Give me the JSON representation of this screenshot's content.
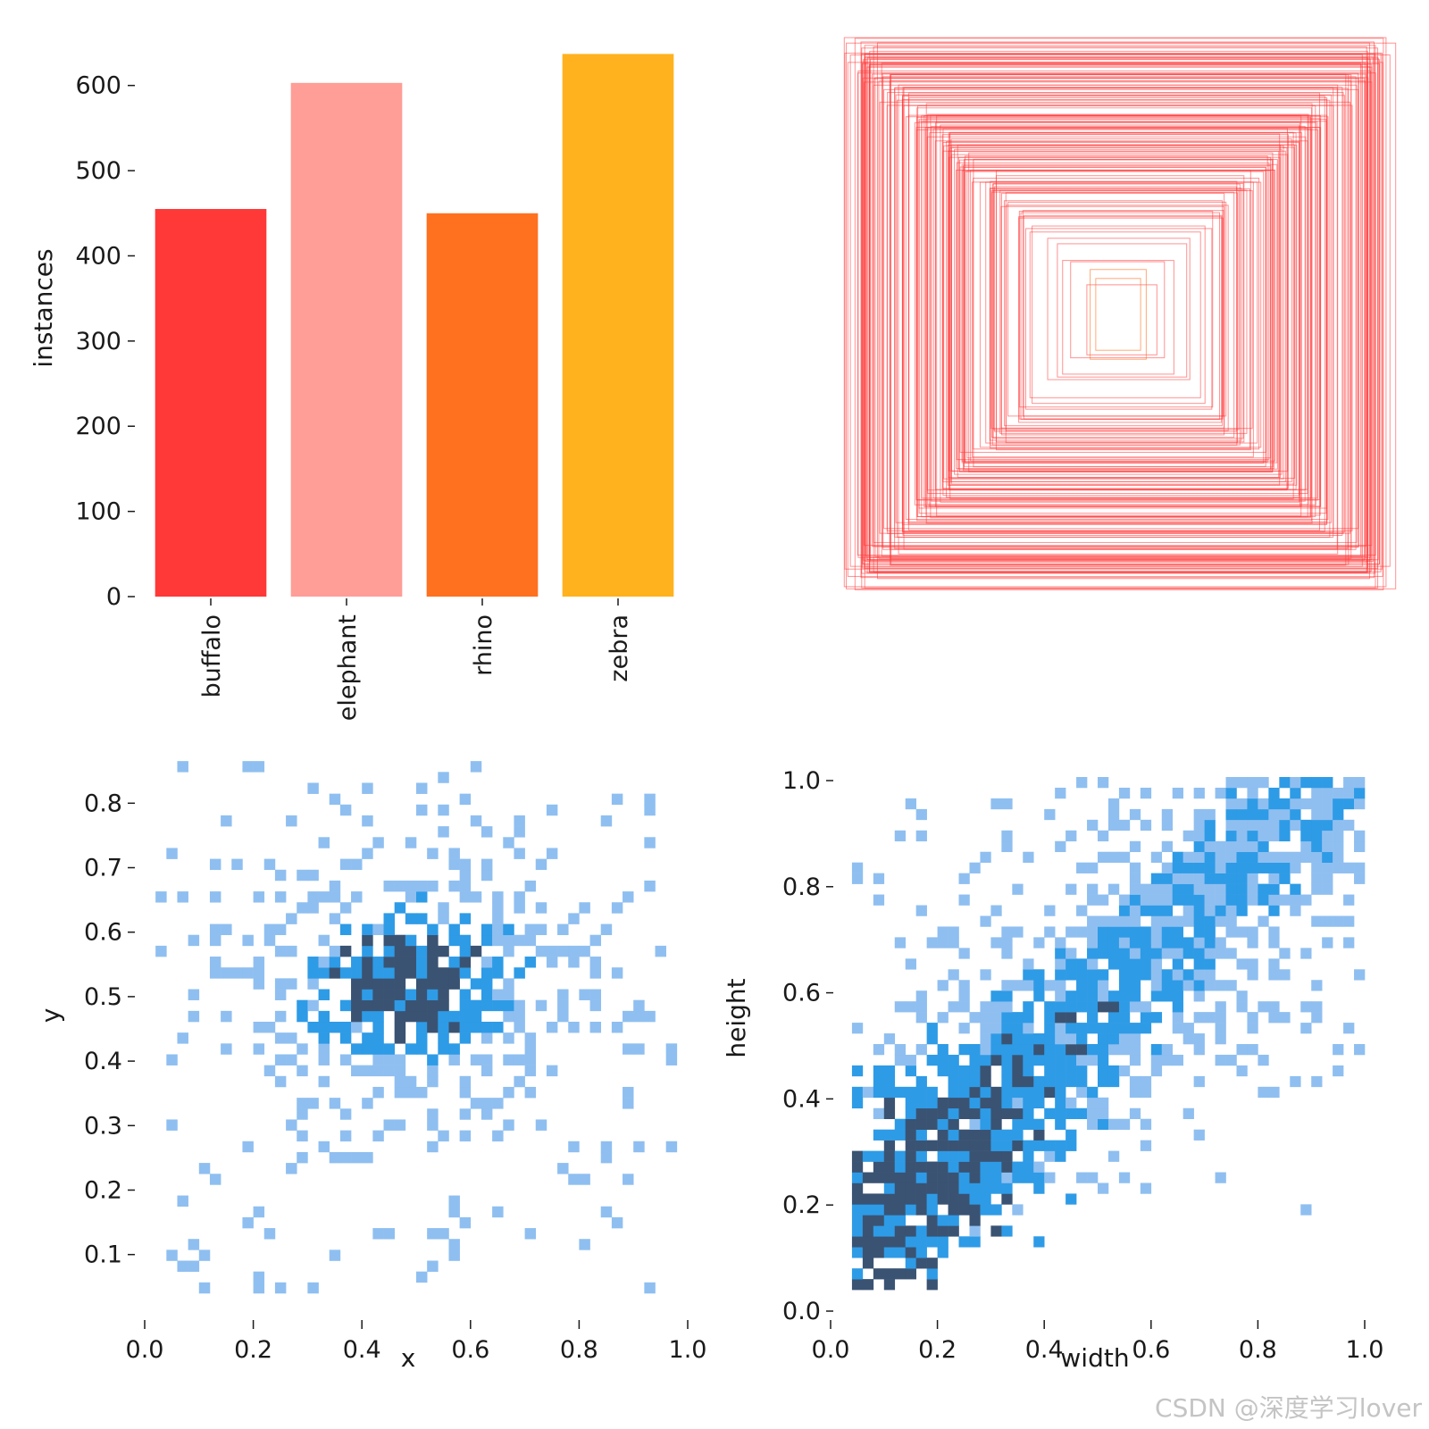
{
  "colors": {
    "buffalo": "#ff3838",
    "elephant": "#ff9d97",
    "rhino": "#ff701f",
    "zebra": "#ffb21d",
    "box_stroke": "#ff3838",
    "hist_light": "#8fbff0",
    "hist_mid": "#2e9be6",
    "hist_dark": "#3a5373"
  },
  "watermark": "CSDN @深度学习lover",
  "chart_data": [
    {
      "id": "class-instances",
      "type": "bar",
      "title": "",
      "xlabel": "",
      "ylabel": "instances",
      "categories": [
        "buffalo",
        "elephant",
        "rhino",
        "zebra"
      ],
      "values": [
        455,
        603,
        450,
        637
      ],
      "ylim": [
        0,
        650
      ],
      "yticks": [
        0,
        100,
        200,
        300,
        400,
        500,
        600
      ],
      "ytick_labels": [
        "0",
        "100",
        "200",
        "300",
        "400",
        "500",
        "600"
      ],
      "grid": false
    },
    {
      "id": "box-overlay",
      "type": "box-overlay",
      "description_note": "concentric normalized bounding boxes centered at (0.5, 0.5)",
      "center": [
        0.5,
        0.5
      ],
      "box_count": 160,
      "size_range": [
        0.08,
        1.0
      ]
    },
    {
      "id": "xy-histogram",
      "type": "heatmap",
      "xlabel": "x",
      "ylabel": "y",
      "xlim": [
        0.0,
        1.0
      ],
      "ylim": [
        0.04,
        0.86
      ],
      "xticks": [
        0.0,
        0.2,
        0.4,
        0.6,
        0.8,
        1.0
      ],
      "xtick_labels": [
        "0.0",
        "0.2",
        "0.4",
        "0.6",
        "0.8",
        "1.0"
      ],
      "yticks": [
        0.1,
        0.2,
        0.3,
        0.4,
        0.5,
        0.6,
        0.7,
        0.8
      ],
      "ytick_labels": [
        "0.1",
        "0.2",
        "0.3",
        "0.4",
        "0.5",
        "0.6",
        "0.7",
        "0.8"
      ],
      "bins": 50,
      "density_center": [
        0.49,
        0.52
      ],
      "density_spread": [
        0.17,
        0.1
      ]
    },
    {
      "id": "wh-histogram",
      "type": "heatmap",
      "xlabel": "width",
      "ylabel": "height",
      "xlim": [
        0.0,
        1.0
      ],
      "ylim": [
        0.0,
        1.0
      ],
      "xticks": [
        0.0,
        0.2,
        0.4,
        0.6,
        0.8,
        1.0
      ],
      "xtick_labels": [
        "0.0",
        "0.2",
        "0.4",
        "0.6",
        "0.8",
        "1.0"
      ],
      "yticks": [
        0.0,
        0.2,
        0.4,
        0.6,
        0.8,
        1.0
      ],
      "ytick_labels": [
        "0.0",
        "0.2",
        "0.4",
        "0.6",
        "0.8",
        "1.0"
      ],
      "bins": 50,
      "relation": "height roughly increases with width"
    }
  ]
}
